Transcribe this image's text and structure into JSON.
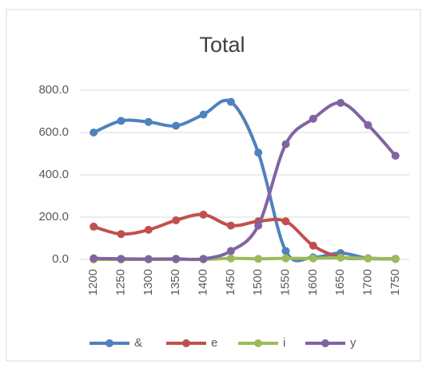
{
  "chart_data": {
    "type": "line",
    "title": "Total",
    "categories": [
      "1200",
      "1250",
      "1300",
      "1350",
      "1400",
      "1450",
      "1500",
      "1550",
      "1600",
      "1650",
      "1700",
      "1750"
    ],
    "series": [
      {
        "name": "&",
        "color": "#4f81bd",
        "values": [
          600,
          655,
          650,
          632,
          685,
          745,
          505,
          40,
          10,
          30,
          5,
          3
        ]
      },
      {
        "name": "e",
        "color": "#c0504d",
        "values": [
          155,
          120,
          140,
          185,
          212,
          160,
          180,
          180,
          65,
          10,
          5,
          3
        ]
      },
      {
        "name": "i",
        "color": "#9bbb59",
        "values": [
          0,
          0,
          0,
          0,
          0,
          5,
          3,
          5,
          5,
          8,
          5,
          3
        ]
      },
      {
        "name": "y",
        "color": "#8064a2",
        "values": [
          5,
          3,
          2,
          3,
          3,
          40,
          160,
          545,
          665,
          740,
          635,
          490
        ]
      }
    ],
    "ylim": [
      0,
      800
    ],
    "yticks": [
      {
        "value": 0,
        "label": "0.0"
      },
      {
        "value": 200,
        "label": "200.0"
      },
      {
        "value": 400,
        "label": "400.0"
      },
      {
        "value": 600,
        "label": "600.0"
      },
      {
        "value": 800,
        "label": "800.0"
      }
    ],
    "grid": true,
    "smooth": true,
    "legend": "bottom"
  }
}
